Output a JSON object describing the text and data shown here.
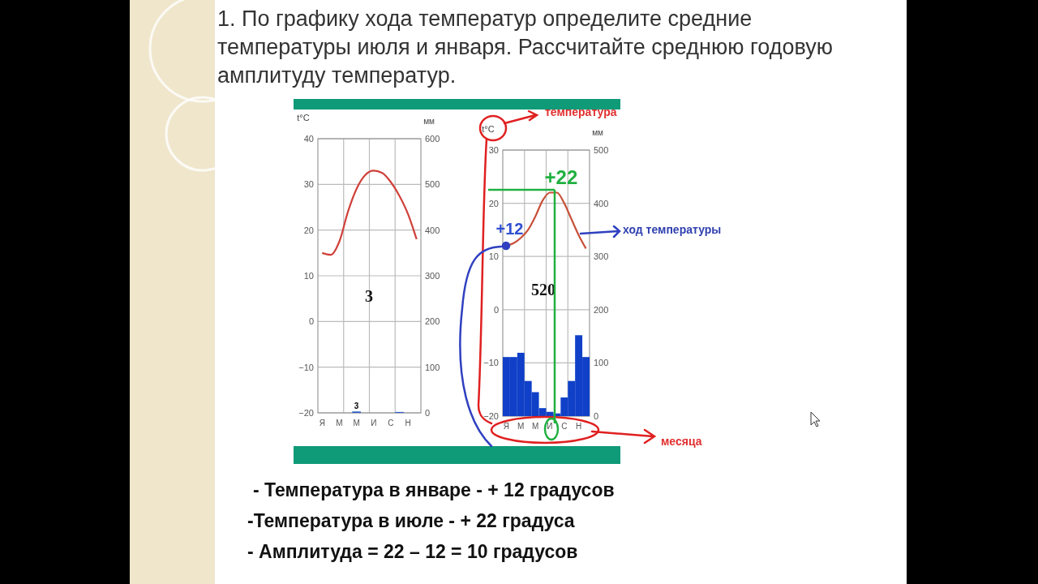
{
  "chart_data": [
    {
      "type": "line",
      "title": "1. По графику хода температур определите средние температуры июля и января. Рассчитайте среднюю годовую амплитуду температур.",
      "ylabel": "t°C",
      "y2label": "мм",
      "categories": [
        "Я",
        null,
        "М",
        null,
        "М",
        null,
        "И",
        null,
        "С",
        null,
        "Н",
        null
      ],
      "ylim": [
        -20,
        40
      ],
      "yticks": [
        -20,
        -10,
        0,
        10,
        20,
        30,
        40
      ],
      "y2lim": [
        0,
        600
      ],
      "y2ticks": [
        0,
        100,
        200,
        300,
        400,
        500,
        600
      ],
      "grid": true,
      "series": [
        {
          "color": "#d0403a",
          "values": [
            15,
            14.6,
            17.5,
            24,
            29,
            32,
            33,
            32.5,
            30.5,
            27.5,
            23.5,
            18
          ]
        },
        {
          "type": "bar",
          "axis": "y2",
          "color": "#2a5cc8",
          "values": [
            0,
            0,
            0,
            0,
            3,
            0,
            0,
            0,
            0,
            2,
            0,
            0
          ],
          "value_labels": [
            null,
            null,
            null,
            null,
            "3",
            null,
            null,
            null,
            null,
            null,
            null,
            null
          ]
        }
      ],
      "annotations": [
        "3"
      ]
    },
    {
      "type": "line",
      "ylabel": "t°C",
      "y2label": "мм",
      "categories": [
        "Я",
        null,
        "М",
        null,
        "М",
        null,
        "И",
        null,
        "С",
        null,
        "Н",
        null
      ],
      "ylim": [
        -20,
        30
      ],
      "yticks": [
        -20,
        -10,
        0,
        10,
        20,
        30
      ],
      "y2lim": [
        0,
        500
      ],
      "y2ticks": [
        0,
        100,
        200,
        300,
        400,
        500
      ],
      "grid": true,
      "series": [
        {
          "color": "#c8503a",
          "values": [
            12,
            12.5,
            13.5,
            15,
            17.5,
            20.5,
            22,
            22,
            20,
            17,
            14,
            11.5
          ]
        },
        {
          "type": "bar",
          "axis": "y2",
          "color": "#1040c8",
          "values": [
            111,
            111,
            119,
            66,
            45,
            15,
            8,
            5,
            35,
            66,
            152,
            111
          ]
        }
      ],
      "annotations": [
        "520",
        "температура",
        "ход температуры",
        "месяца",
        {
          "text": "+12",
          "x": "Я",
          "y": 12
        },
        {
          "text": "+22",
          "x": "И",
          "y": 22
        },
        "- Температура в январе - + 12 градусов",
        "-Температура в июле - + 22 градуса",
        "- Амплитуда = 22 – 12 = 10 градусов"
      ]
    }
  ]
}
